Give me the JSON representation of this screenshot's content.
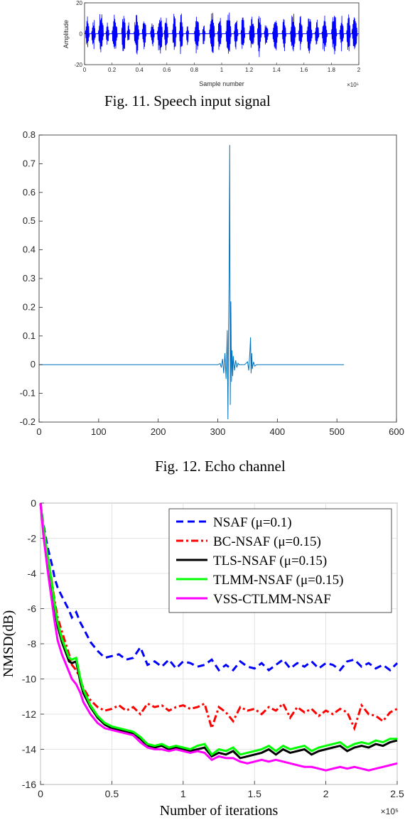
{
  "captions": {
    "fig11": "Fig. 11. Speech input signal",
    "fig12": "Fig. 12. Echo channel"
  },
  "chart_data": [
    {
      "type": "line",
      "color": "#0000ff",
      "xlabel": "Sample number",
      "ylabel": "Amplitude",
      "x_exponent": "×10⁵",
      "xlim": [
        0,
        2
      ],
      "ylim": [
        -20,
        20
      ],
      "xticks": [
        0,
        0.2,
        0.4,
        0.6,
        0.8,
        1,
        1.2,
        1.4,
        1.6,
        1.8,
        2
      ],
      "yticks": [
        -20,
        0,
        20
      ],
      "bursts": [
        {
          "x": [
            0.005,
            0.035
          ],
          "amp": 12
        },
        {
          "x": [
            0.05,
            0.08
          ],
          "amp": 11
        },
        {
          "x": [
            0.1,
            0.14
          ],
          "amp": 16
        },
        {
          "x": [
            0.155,
            0.18
          ],
          "amp": 9
        },
        {
          "x": [
            0.2,
            0.24
          ],
          "amp": 14
        },
        {
          "x": [
            0.27,
            0.3
          ],
          "amp": 18
        },
        {
          "x": [
            0.31,
            0.33
          ],
          "amp": 8
        },
        {
          "x": [
            0.36,
            0.4
          ],
          "amp": 15
        },
        {
          "x": [
            0.42,
            0.45
          ],
          "amp": 14
        },
        {
          "x": [
            0.48,
            0.51
          ],
          "amp": 10
        },
        {
          "x": [
            0.53,
            0.57
          ],
          "amp": 17
        },
        {
          "x": [
            0.58,
            0.61
          ],
          "amp": 11
        },
        {
          "x": [
            0.64,
            0.67
          ],
          "amp": 14
        },
        {
          "x": [
            0.69,
            0.72
          ],
          "amp": 16
        },
        {
          "x": [
            0.74,
            0.76
          ],
          "amp": 9
        },
        {
          "x": [
            0.8,
            0.84
          ],
          "amp": 15
        },
        {
          "x": [
            0.86,
            0.88
          ],
          "amp": 10
        },
        {
          "x": [
            0.91,
            0.95
          ],
          "amp": 16
        },
        {
          "x": [
            0.97,
            1.0
          ],
          "amp": 13
        },
        {
          "x": [
            1.03,
            1.07
          ],
          "amp": 17
        },
        {
          "x": [
            1.09,
            1.12
          ],
          "amp": 11
        },
        {
          "x": [
            1.14,
            1.17
          ],
          "amp": 15
        },
        {
          "x": [
            1.2,
            1.24
          ],
          "amp": 14
        },
        {
          "x": [
            1.26,
            1.29
          ],
          "amp": 16
        },
        {
          "x": [
            1.31,
            1.34
          ],
          "amp": 10
        },
        {
          "x": [
            1.37,
            1.41
          ],
          "amp": 15
        },
        {
          "x": [
            1.44,
            1.47
          ],
          "amp": 13
        },
        {
          "x": [
            1.5,
            1.54
          ],
          "amp": 17
        },
        {
          "x": [
            1.56,
            1.59
          ],
          "amp": 12
        },
        {
          "x": [
            1.62,
            1.66
          ],
          "amp": 16
        },
        {
          "x": [
            1.68,
            1.71
          ],
          "amp": 10
        },
        {
          "x": [
            1.73,
            1.77
          ],
          "amp": 15
        },
        {
          "x": [
            1.8,
            1.84
          ],
          "amp": 16
        },
        {
          "x": [
            1.86,
            1.89
          ],
          "amp": 12
        },
        {
          "x": [
            1.91,
            1.94
          ],
          "amp": 14
        },
        {
          "x": [
            1.95,
            1.99
          ],
          "amp": 17
        }
      ]
    },
    {
      "type": "line",
      "color": "#0072bd",
      "xlim": [
        0,
        600
      ],
      "ylim": [
        -0.2,
        0.8
      ],
      "xticks": [
        0,
        100,
        200,
        300,
        400,
        500,
        600
      ],
      "yticks": [
        -0.2,
        -0.1,
        0,
        0.1,
        0.2,
        0.3,
        0.4,
        0.5,
        0.6,
        0.7,
        0.8
      ],
      "x": [
        0,
        300,
        304,
        306,
        308,
        310,
        312,
        314,
        316,
        317,
        318,
        319,
        320,
        321,
        322,
        323,
        324,
        325,
        326,
        328,
        330,
        332,
        334,
        336,
        340,
        345,
        350,
        352,
        354,
        355,
        356,
        357,
        358,
        360,
        362,
        365,
        370,
        512
      ],
      "y": [
        0,
        0,
        0.004,
        -0.01,
        0.02,
        -0.03,
        0.04,
        -0.05,
        0.12,
        -0.19,
        0.1,
        0.28,
        0.765,
        -0.14,
        0.22,
        -0.06,
        0.05,
        -0.04,
        0.03,
        -0.02,
        0.015,
        -0.01,
        0.005,
        0,
        0,
        0,
        0.01,
        -0.02,
        0.05,
        0.095,
        -0.03,
        0.04,
        -0.015,
        0.01,
        -0.005,
        0,
        0,
        0
      ]
    },
    {
      "type": "line",
      "xlabel": "Number of iterations",
      "ylabel": "NMSD(dB)",
      "x_exponent": "×10⁵",
      "xlim": [
        0,
        2.5
      ],
      "ylim": [
        -16,
        0
      ],
      "xticks": [
        0,
        0.5,
        1,
        1.5,
        2,
        2.5
      ],
      "yticks": [
        -16,
        -14,
        -12,
        -10,
        -8,
        -6,
        -4,
        -2,
        0
      ],
      "legend_position": "top-right",
      "x": [
        0,
        0.02,
        0.05,
        0.08,
        0.1,
        0.12,
        0.15,
        0.2,
        0.22,
        0.25,
        0.28,
        0.3,
        0.35,
        0.4,
        0.45,
        0.5,
        0.55,
        0.6,
        0.65,
        0.7,
        0.75,
        0.8,
        0.85,
        0.9,
        0.95,
        1.0,
        1.05,
        1.1,
        1.15,
        1.2,
        1.25,
        1.3,
        1.35,
        1.4,
        1.45,
        1.5,
        1.55,
        1.6,
        1.65,
        1.7,
        1.75,
        1.8,
        1.85,
        1.9,
        1.95,
        2.0,
        2.05,
        2.1,
        2.15,
        2.2,
        2.25,
        2.3,
        2.35,
        2.4,
        2.45,
        2.5
      ],
      "series": [
        {
          "name": "NSAF (μ=0.1)",
          "color": "#0000ff",
          "dash": "dash",
          "values": [
            0,
            -1.2,
            -2.5,
            -3.5,
            -4.3,
            -4.8,
            -5.3,
            -6.1,
            -6.5,
            -6.2,
            -6.8,
            -7.1,
            -7.9,
            -8.4,
            -8.8,
            -8.7,
            -8.6,
            -8.9,
            -8.8,
            -8.2,
            -9.2,
            -9.0,
            -9.3,
            -8.9,
            -9.4,
            -9.0,
            -9.1,
            -9.3,
            -9.2,
            -8.9,
            -9.5,
            -9.2,
            -9.5,
            -9.0,
            -9.3,
            -9.4,
            -9.1,
            -9.5,
            -9.2,
            -8.9,
            -9.4,
            -9.1,
            -9.3,
            -9.0,
            -9.4,
            -9.1,
            -9.2,
            -9.5,
            -9.0,
            -8.9,
            -9.3,
            -9.1,
            -9.4,
            -9.2,
            -9.5,
            -9.1
          ]
        },
        {
          "name": "BC-NSAF (μ=0.15)",
          "color": "#ff0000",
          "dash": "dashdot",
          "values": [
            0,
            -1.5,
            -3.0,
            -4.5,
            -5.6,
            -6.5,
            -7.3,
            -8.6,
            -9.2,
            -9.5,
            -10.0,
            -10.5,
            -11.2,
            -11.6,
            -11.8,
            -11.7,
            -11.5,
            -11.8,
            -11.6,
            -12.0,
            -11.4,
            -11.6,
            -11.5,
            -11.8,
            -11.6,
            -11.5,
            -11.7,
            -11.6,
            -11.4,
            -12.8,
            -11.6,
            -11.9,
            -12.4,
            -11.6,
            -11.8,
            -11.7,
            -12.0,
            -11.6,
            -11.8,
            -11.4,
            -12.2,
            -11.6,
            -11.9,
            -11.7,
            -12.1,
            -11.8,
            -12.0,
            -11.7,
            -11.9,
            -12.8,
            -11.5,
            -12.0,
            -12.1,
            -12.4,
            -11.9,
            -11.7
          ]
        },
        {
          "name": "TLS-NSAF (μ=0.15)",
          "color": "#000000",
          "dash": "solid",
          "values": [
            0,
            -1.4,
            -3.1,
            -4.8,
            -6.0,
            -7.0,
            -7.9,
            -9.0,
            -9.1,
            -9.0,
            -10.2,
            -10.8,
            -11.6,
            -12.2,
            -12.6,
            -12.8,
            -12.9,
            -13.0,
            -13.1,
            -13.4,
            -13.8,
            -13.9,
            -13.8,
            -14.0,
            -13.9,
            -14.0,
            -14.1,
            -14.0,
            -13.9,
            -14.4,
            -14.2,
            -14.3,
            -14.1,
            -14.5,
            -14.4,
            -14.3,
            -14.2,
            -14.0,
            -14.3,
            -14.0,
            -14.2,
            -14.1,
            -14.0,
            -14.3,
            -14.1,
            -14.0,
            -13.9,
            -13.8,
            -14.1,
            -13.9,
            -13.8,
            -13.9,
            -13.7,
            -13.8,
            -13.6,
            -13.5
          ]
        },
        {
          "name": "TLMM-NSAF (μ=0.15)",
          "color": "#00ff00",
          "dash": "solid",
          "values": [
            0,
            -1.3,
            -3.0,
            -4.6,
            -5.8,
            -6.8,
            -7.7,
            -8.8,
            -8.9,
            -8.8,
            -10.0,
            -10.6,
            -11.5,
            -12.1,
            -12.5,
            -12.7,
            -12.8,
            -12.9,
            -13.0,
            -13.3,
            -13.7,
            -13.8,
            -13.7,
            -13.9,
            -13.8,
            -13.9,
            -14.0,
            -13.8,
            -13.7,
            -14.3,
            -14.0,
            -14.1,
            -13.9,
            -14.3,
            -14.2,
            -14.1,
            -14.0,
            -13.8,
            -14.1,
            -13.8,
            -14.0,
            -13.9,
            -13.8,
            -14.1,
            -13.9,
            -13.8,
            -13.7,
            -13.6,
            -13.9,
            -13.7,
            -13.6,
            -13.7,
            -13.5,
            -13.6,
            -13.4,
            -13.4
          ]
        },
        {
          "name": "VSS-CTLMM-NSAF",
          "color": "#ff00ff",
          "dash": "solid",
          "values": [
            0,
            -1.8,
            -3.8,
            -5.6,
            -6.8,
            -7.8,
            -8.6,
            -9.6,
            -10.0,
            -10.3,
            -10.8,
            -11.3,
            -12.0,
            -12.5,
            -12.8,
            -12.9,
            -13.0,
            -13.1,
            -13.2,
            -13.6,
            -13.9,
            -14.0,
            -14.0,
            -14.1,
            -14.0,
            -14.1,
            -14.2,
            -14.1,
            -14.2,
            -14.6,
            -14.4,
            -14.5,
            -14.5,
            -14.7,
            -14.8,
            -14.7,
            -14.6,
            -14.7,
            -14.6,
            -14.7,
            -14.8,
            -14.9,
            -15.0,
            -15.0,
            -15.1,
            -15.2,
            -15.1,
            -15.0,
            -15.1,
            -15.0,
            -15.1,
            -15.2,
            -15.1,
            -15.0,
            -14.9,
            -14.8
          ]
        }
      ]
    }
  ]
}
